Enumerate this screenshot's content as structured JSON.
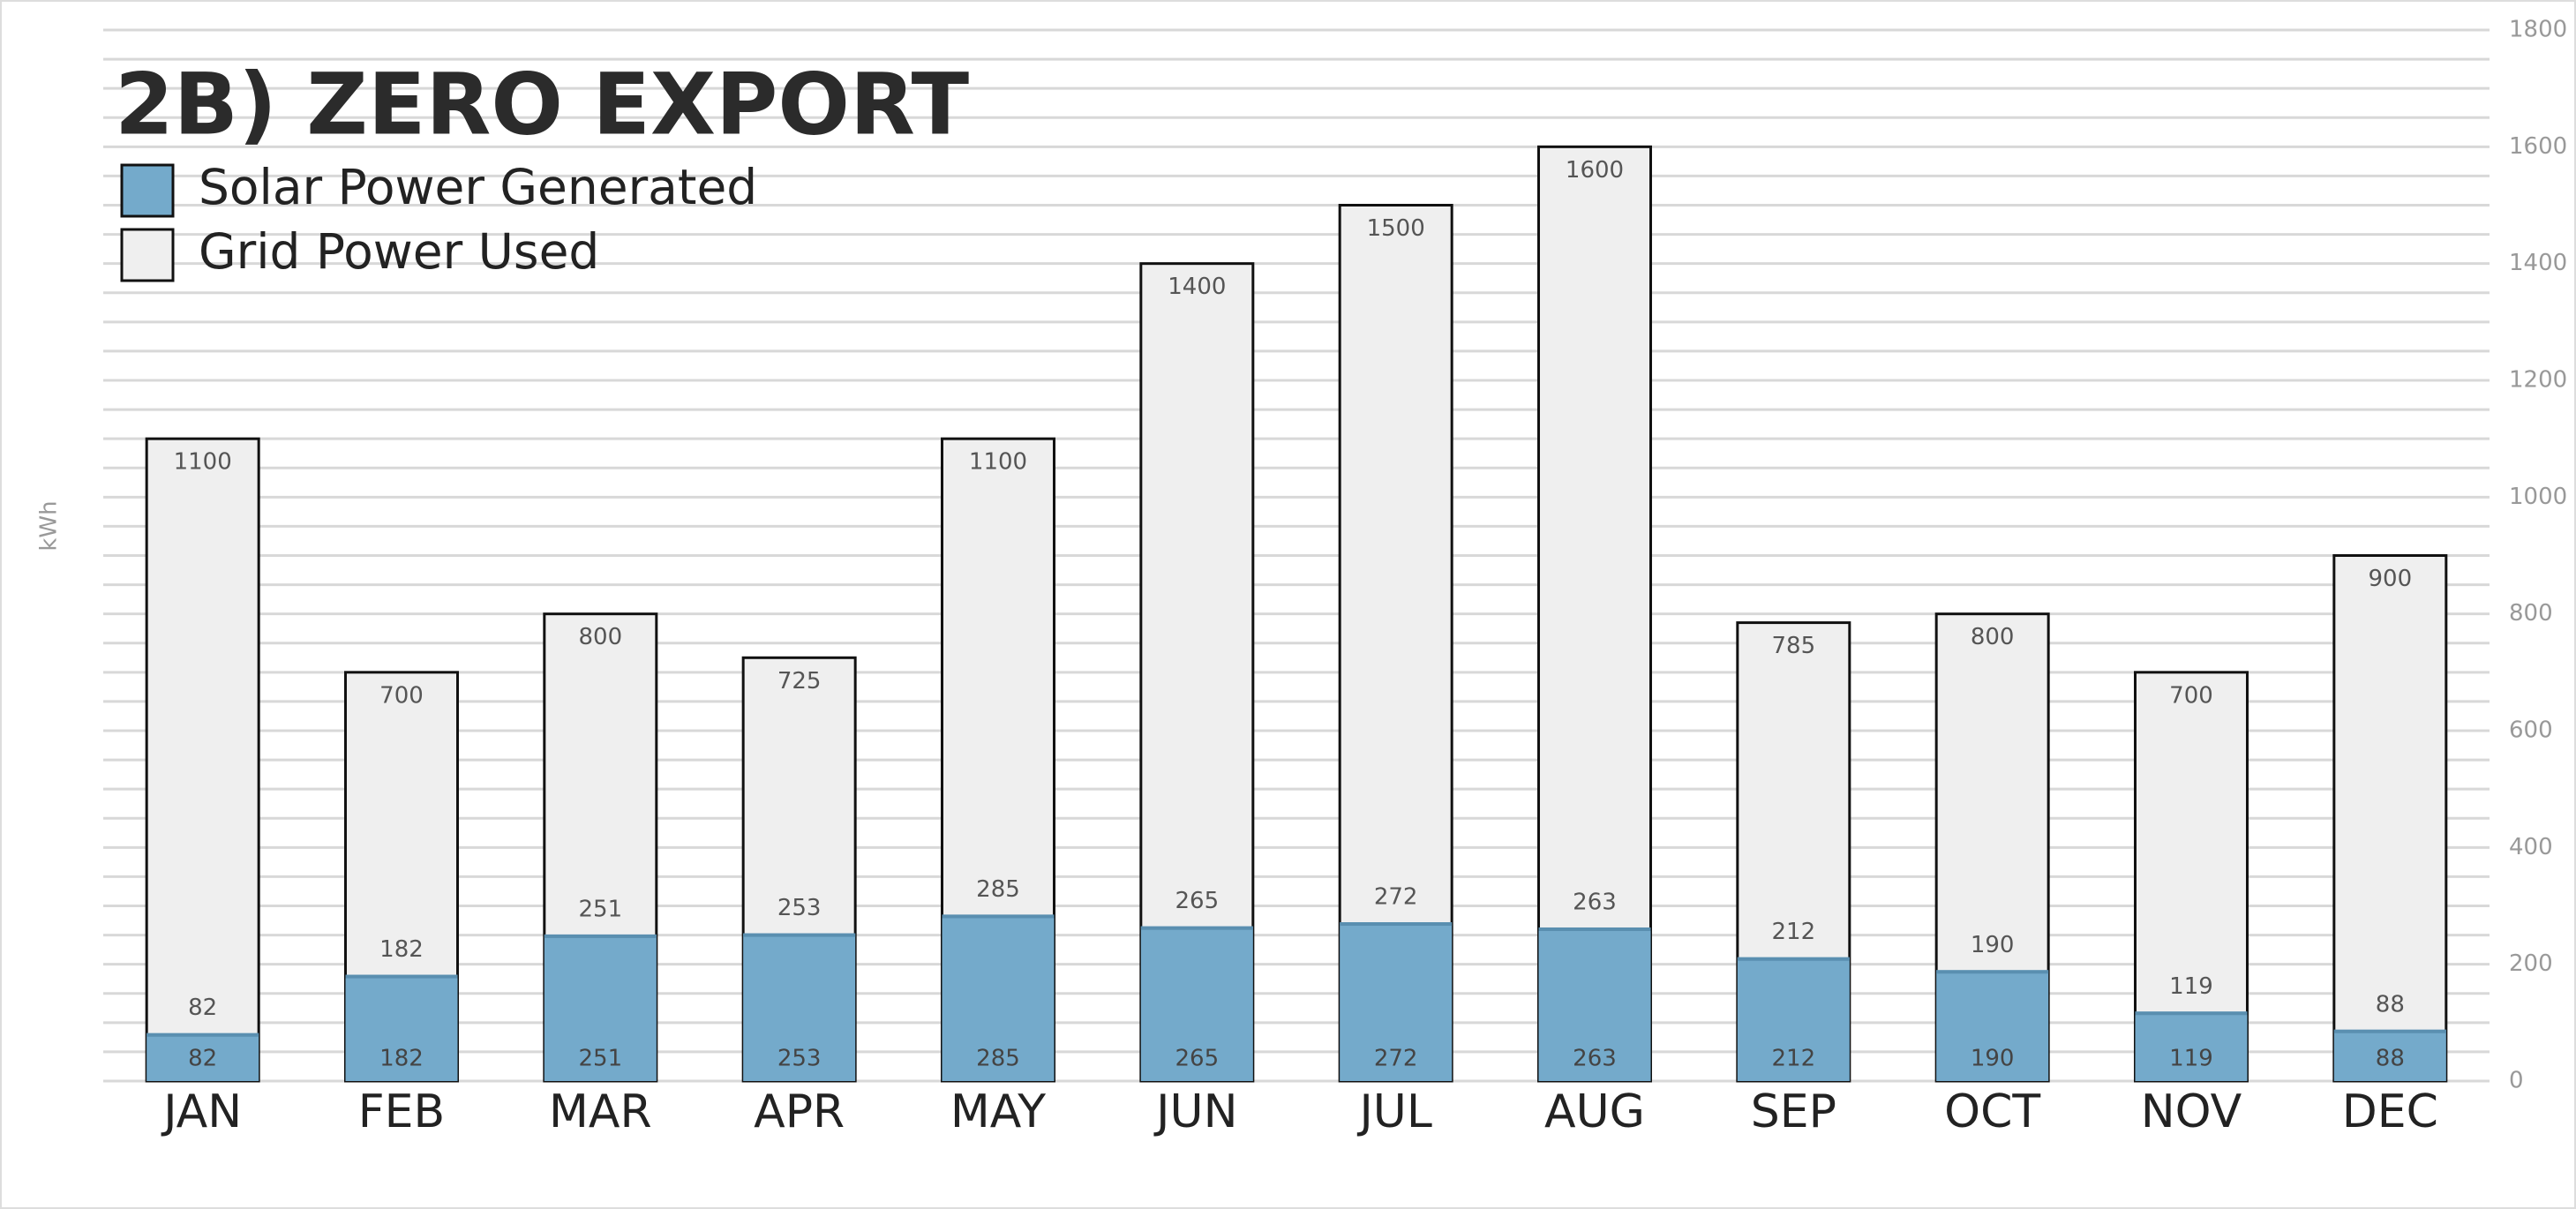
{
  "chart_data": {
    "type": "overlap_bar",
    "title": "2B) ZERO EXPORT",
    "y_label": "kWh",
    "categories": [
      "JAN",
      "FEB",
      "MAR",
      "APR",
      "MAY",
      "JUN",
      "JUL",
      "AUG",
      "SEP",
      "OCT",
      "NOV",
      "DEC"
    ],
    "series": [
      {
        "name": "Grid Power Used",
        "color": "#efefef",
        "values": [
          1100,
          700,
          800,
          725,
          1100,
          1400,
          1500,
          1600,
          785,
          800,
          700,
          900
        ]
      },
      {
        "name": "Solar Power Generated",
        "color": "#74aacb",
        "values": [
          82,
          182,
          251,
          253,
          285,
          265,
          272,
          263,
          212,
          190,
          119,
          88
        ]
      }
    ],
    "legend_order": [
      1,
      0
    ],
    "ylim": [
      0,
      1800
    ],
    "yticks": [
      0,
      200,
      400,
      600,
      800,
      1000,
      1200,
      1400,
      1600,
      1800
    ],
    "ygrid": [
      0,
      50,
      100,
      150,
      200,
      250,
      300,
      350,
      400,
      450,
      500,
      550,
      600,
      650,
      700,
      750,
      800,
      850,
      900,
      950,
      1000,
      1050,
      1100,
      1150,
      1200,
      1250,
      1300,
      1350,
      1400,
      1450,
      1500,
      1550,
      1600,
      1650,
      1700,
      1750,
      1800
    ],
    "grid": true
  }
}
